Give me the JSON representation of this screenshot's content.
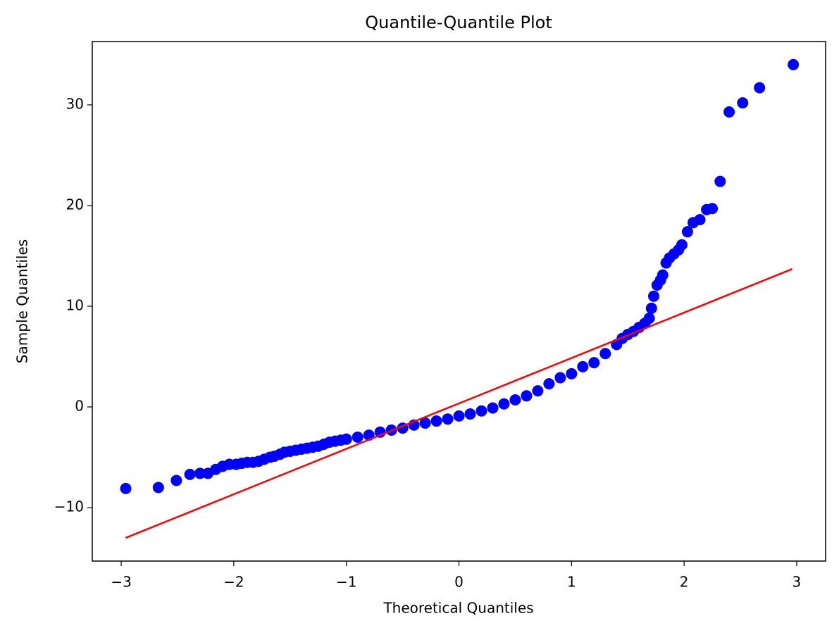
{
  "chart_data": {
    "type": "scatter",
    "title": "Quantile-Quantile Plot",
    "x_label": "Theoretical Quantiles",
    "y_label": "Sample Quantiles",
    "xlim": [
      -3.257,
      3.257
    ],
    "ylim": [
      -15.31,
      36.29
    ],
    "xticks": [
      {
        "value": -3,
        "label": "−3"
      },
      {
        "value": -2,
        "label": "−2"
      },
      {
        "value": -1,
        "label": "−1"
      },
      0,
      1,
      2,
      3
    ],
    "yticks": [
      {
        "value": -10,
        "label": "−10"
      },
      0,
      10,
      20,
      30
    ],
    "grid": false,
    "series": [
      {
        "color": "#0000ff",
        "x": [
          -2.96,
          -2.67,
          -2.51,
          -2.39,
          -2.3,
          -2.23,
          -2.16,
          -2.1,
          -2.04,
          -1.98,
          -1.93,
          -1.88,
          -1.83,
          -1.78,
          -1.73,
          -1.68,
          -1.64,
          -1.59,
          -1.55,
          -1.5,
          -1.45,
          -1.4,
          -1.35,
          -1.3,
          -1.25,
          -1.2,
          -1.15,
          -1.1,
          -1.05,
          -1.0,
          -0.9,
          -0.8,
          -0.7,
          -0.6,
          -0.5,
          -0.4,
          -0.3,
          -0.2,
          -0.1,
          0,
          0.1,
          0.2,
          0.3,
          0.4,
          0.5,
          0.6,
          0.7,
          0.8,
          0.9,
          1.0,
          1.1,
          1.2,
          1.3,
          1.4,
          1.45,
          1.5,
          1.55,
          1.6,
          1.65,
          1.69,
          1.71,
          1.73,
          1.76,
          1.79,
          1.81,
          1.84,
          1.87,
          1.91,
          1.95,
          1.98,
          2.03,
          2.08,
          2.14,
          2.2,
          2.25,
          2.32,
          2.4,
          2.52,
          2.67,
          2.97
        ],
        "values": [
          -8.1,
          -8.0,
          -7.3,
          -6.7,
          -6.6,
          -6.6,
          -6.2,
          -5.9,
          -5.7,
          -5.7,
          -5.6,
          -5.5,
          -5.5,
          -5.4,
          -5.2,
          -5.0,
          -4.9,
          -4.7,
          -4.5,
          -4.4,
          -4.3,
          -4.2,
          -4.1,
          -4.0,
          -3.9,
          -3.7,
          -3.5,
          -3.4,
          -3.3,
          -3.2,
          -3.0,
          -2.8,
          -2.5,
          -2.3,
          -2.1,
          -1.8,
          -1.6,
          -1.4,
          -1.2,
          -0.9,
          -0.7,
          -0.4,
          -0.1,
          0.3,
          0.7,
          1.1,
          1.6,
          2.3,
          2.9,
          3.3,
          4.0,
          4.4,
          5.3,
          6.2,
          6.8,
          7.2,
          7.5,
          7.9,
          8.3,
          8.8,
          9.8,
          11.0,
          12.1,
          12.6,
          13.1,
          14.3,
          14.8,
          15.2,
          15.6,
          16.1,
          17.4,
          18.3,
          18.6,
          19.6,
          19.7,
          22.4,
          29.3,
          30.2,
          31.7,
          34.0
        ]
      }
    ],
    "line": {
      "color": "#ff0000",
      "x": [
        -2.96,
        2.96
      ],
      "values": [
        -13.0,
        13.7
      ]
    }
  }
}
